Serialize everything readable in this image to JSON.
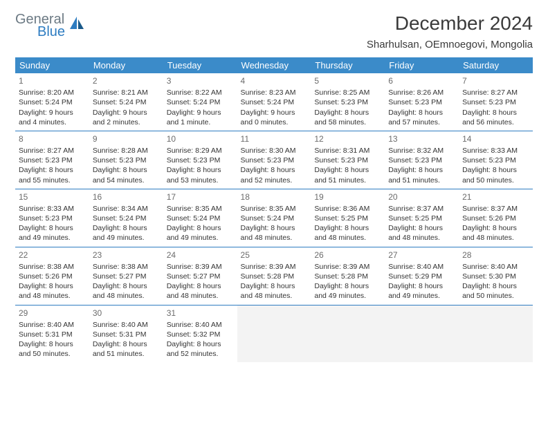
{
  "logo": {
    "general": "General",
    "blue": "Blue"
  },
  "title": "December 2024",
  "location": "Sharhulsan, OEmnoegovi, Mongolia",
  "header_bg": "#3b8bc9",
  "header_fg": "#ffffff",
  "sep_color": "#2d7cc1",
  "weekdays": [
    "Sunday",
    "Monday",
    "Tuesday",
    "Wednesday",
    "Thursday",
    "Friday",
    "Saturday"
  ],
  "weeks": [
    [
      {
        "n": "1",
        "sr": "8:20 AM",
        "ss": "5:24 PM",
        "dl": "9 hours and 4 minutes."
      },
      {
        "n": "2",
        "sr": "8:21 AM",
        "ss": "5:24 PM",
        "dl": "9 hours and 2 minutes."
      },
      {
        "n": "3",
        "sr": "8:22 AM",
        "ss": "5:24 PM",
        "dl": "9 hours and 1 minute."
      },
      {
        "n": "4",
        "sr": "8:23 AM",
        "ss": "5:24 PM",
        "dl": "9 hours and 0 minutes."
      },
      {
        "n": "5",
        "sr": "8:25 AM",
        "ss": "5:23 PM",
        "dl": "8 hours and 58 minutes."
      },
      {
        "n": "6",
        "sr": "8:26 AM",
        "ss": "5:23 PM",
        "dl": "8 hours and 57 minutes."
      },
      {
        "n": "7",
        "sr": "8:27 AM",
        "ss": "5:23 PM",
        "dl": "8 hours and 56 minutes."
      }
    ],
    [
      {
        "n": "8",
        "sr": "8:27 AM",
        "ss": "5:23 PM",
        "dl": "8 hours and 55 minutes."
      },
      {
        "n": "9",
        "sr": "8:28 AM",
        "ss": "5:23 PM",
        "dl": "8 hours and 54 minutes."
      },
      {
        "n": "10",
        "sr": "8:29 AM",
        "ss": "5:23 PM",
        "dl": "8 hours and 53 minutes."
      },
      {
        "n": "11",
        "sr": "8:30 AM",
        "ss": "5:23 PM",
        "dl": "8 hours and 52 minutes."
      },
      {
        "n": "12",
        "sr": "8:31 AM",
        "ss": "5:23 PM",
        "dl": "8 hours and 51 minutes."
      },
      {
        "n": "13",
        "sr": "8:32 AM",
        "ss": "5:23 PM",
        "dl": "8 hours and 51 minutes."
      },
      {
        "n": "14",
        "sr": "8:33 AM",
        "ss": "5:23 PM",
        "dl": "8 hours and 50 minutes."
      }
    ],
    [
      {
        "n": "15",
        "sr": "8:33 AM",
        "ss": "5:23 PM",
        "dl": "8 hours and 49 minutes."
      },
      {
        "n": "16",
        "sr": "8:34 AM",
        "ss": "5:24 PM",
        "dl": "8 hours and 49 minutes."
      },
      {
        "n": "17",
        "sr": "8:35 AM",
        "ss": "5:24 PM",
        "dl": "8 hours and 49 minutes."
      },
      {
        "n": "18",
        "sr": "8:35 AM",
        "ss": "5:24 PM",
        "dl": "8 hours and 48 minutes."
      },
      {
        "n": "19",
        "sr": "8:36 AM",
        "ss": "5:25 PM",
        "dl": "8 hours and 48 minutes."
      },
      {
        "n": "20",
        "sr": "8:37 AM",
        "ss": "5:25 PM",
        "dl": "8 hours and 48 minutes."
      },
      {
        "n": "21",
        "sr": "8:37 AM",
        "ss": "5:26 PM",
        "dl": "8 hours and 48 minutes."
      }
    ],
    [
      {
        "n": "22",
        "sr": "8:38 AM",
        "ss": "5:26 PM",
        "dl": "8 hours and 48 minutes."
      },
      {
        "n": "23",
        "sr": "8:38 AM",
        "ss": "5:27 PM",
        "dl": "8 hours and 48 minutes."
      },
      {
        "n": "24",
        "sr": "8:39 AM",
        "ss": "5:27 PM",
        "dl": "8 hours and 48 minutes."
      },
      {
        "n": "25",
        "sr": "8:39 AM",
        "ss": "5:28 PM",
        "dl": "8 hours and 48 minutes."
      },
      {
        "n": "26",
        "sr": "8:39 AM",
        "ss": "5:28 PM",
        "dl": "8 hours and 49 minutes."
      },
      {
        "n": "27",
        "sr": "8:40 AM",
        "ss": "5:29 PM",
        "dl": "8 hours and 49 minutes."
      },
      {
        "n": "28",
        "sr": "8:40 AM",
        "ss": "5:30 PM",
        "dl": "8 hours and 50 minutes."
      }
    ],
    [
      {
        "n": "29",
        "sr": "8:40 AM",
        "ss": "5:31 PM",
        "dl": "8 hours and 50 minutes."
      },
      {
        "n": "30",
        "sr": "8:40 AM",
        "ss": "5:31 PM",
        "dl": "8 hours and 51 minutes."
      },
      {
        "n": "31",
        "sr": "8:40 AM",
        "ss": "5:32 PM",
        "dl": "8 hours and 52 minutes."
      },
      null,
      null,
      null,
      null
    ]
  ],
  "labels": {
    "sunrise": "Sunrise:",
    "sunset": "Sunset:",
    "daylight": "Daylight:"
  }
}
